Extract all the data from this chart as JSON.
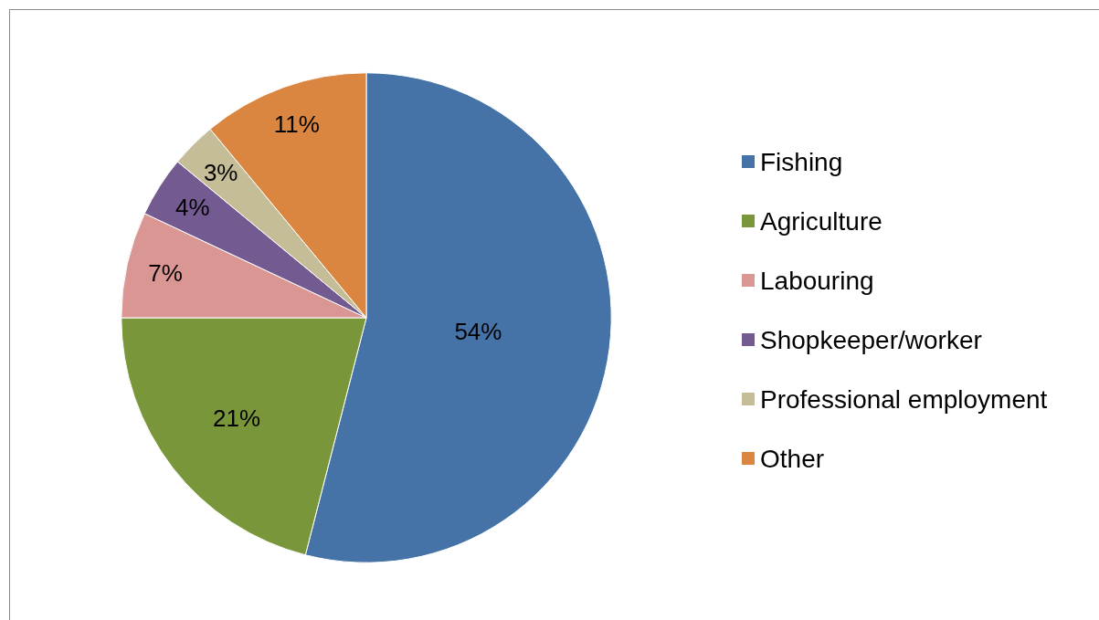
{
  "chart_data": {
    "type": "pie",
    "categories": [
      "Fishing",
      "Agriculture",
      "Labouring",
      "Shopkeeper/worker",
      "Professional employment",
      "Other"
    ],
    "values": [
      54,
      21,
      7,
      4,
      3,
      11
    ],
    "colors": [
      "#4573a7",
      "#7a963a",
      "#da9693",
      "#735a91",
      "#c4bd97",
      "#db8640"
    ],
    "value_labels": [
      "54%",
      "21%",
      "7%",
      "4%",
      "3%",
      "11%"
    ],
    "legend": "right"
  }
}
